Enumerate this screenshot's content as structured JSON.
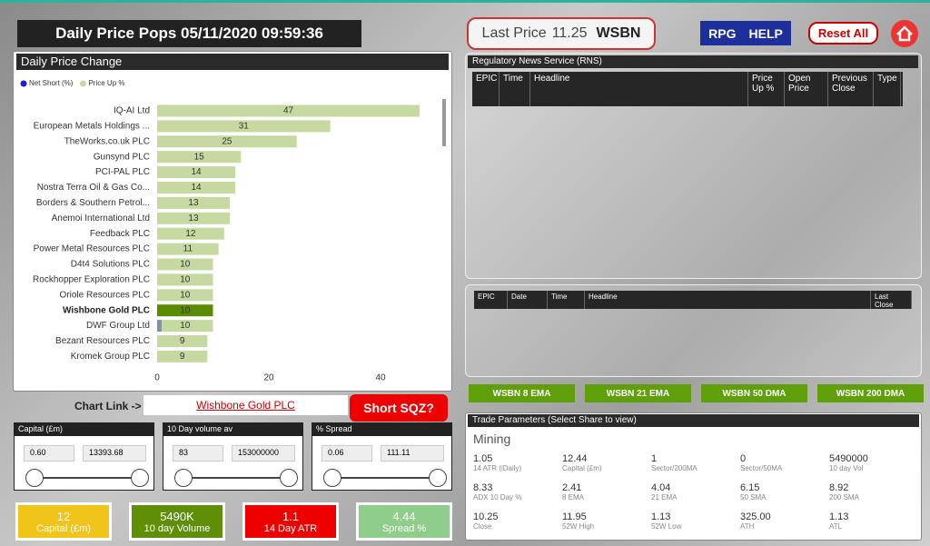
{
  "header": {
    "title": "Daily Price Pops 05/11/2020 09:59:36",
    "last_price_label": "Last Price",
    "last_price": "11.25",
    "epic": "WSBN",
    "buttons": [
      "RPG",
      "HELP",
      "Reset All"
    ]
  },
  "chart_data": {
    "type": "bar",
    "orientation": "horizontal",
    "title": "Daily Price Change",
    "categories": [
      "IQ-AI Ltd",
      "European Metals Holdings ...",
      "TheWorks.co.uk PLC",
      "Gunsynd PLC",
      "PCI-PAL PLC",
      "Nostra Terra Oil & Gas Co...",
      "Borders & Southern Petrol...",
      "Anemoi International Ltd",
      "Feedback PLC",
      "Power Metal Resources PLC",
      "D4t4 Solutions PLC",
      "Rockhopper Exploration PLC",
      "Oriole Resources PLC",
      "Wishbone Gold PLC",
      "DWF Group Ltd",
      "Bezant Resources PLC",
      "Kromek Group PLC"
    ],
    "series": [
      {
        "name": "Net Short (%)",
        "color": "#1f1fd0",
        "values": [
          null,
          null,
          null,
          null,
          null,
          null,
          null,
          null,
          null,
          null,
          null,
          null,
          null,
          null,
          0.8,
          null,
          null
        ]
      },
      {
        "name": "Price Up %",
        "color": "#c6d9a1",
        "colors": [
          "#c6d9a1",
          "#c6d9a1",
          "#c6d9a1",
          "#c6d9a1",
          "#c6d9a1",
          "#c6d9a1",
          "#c6d9a1",
          "#c6d9a1",
          "#c6d9a1",
          "#c6d9a1",
          "#c6d9a1",
          "#c6d9a1",
          "#c6d9a1",
          "#5b8c00",
          "#c6d9a1",
          "#c6d9a1",
          "#c6d9a1"
        ],
        "values": [
          47,
          31,
          25,
          15,
          14,
          14,
          13,
          13,
          12,
          11,
          10,
          10,
          10,
          10,
          10,
          9,
          9
        ]
      }
    ],
    "xlim": [
      0,
      50
    ],
    "xticks": [
      0,
      20,
      40
    ],
    "grid": false
  },
  "chart_link": {
    "label": "Chart Link ->",
    "link": "Wishbone Gold PLC",
    "button": "Short SQZ?"
  },
  "slicers": [
    {
      "title": "Capital (£m)",
      "min": "0.60",
      "max": "13393.68"
    },
    {
      "title": "10  Day volume av",
      "min": "83",
      "max": "153000000"
    },
    {
      "title": "% Spread",
      "min": "0.06",
      "max": "111.11"
    }
  ],
  "cards": [
    {
      "value": "12",
      "label": "Capital (£m)"
    },
    {
      "value": "5490K",
      "label": "10 day Volume"
    },
    {
      "value": "1.1",
      "label": "14 Day ATR"
    },
    {
      "value": "4.44",
      "label": "Spread %"
    }
  ],
  "rns": {
    "title": "Regulatory News Service (RNS)",
    "headers": [
      "EPIC",
      "Time",
      "Headline",
      "Price Up %",
      "Open Price",
      "Previous Close",
      "Type"
    ]
  },
  "news": {
    "headers": [
      "EPIC",
      "Date",
      "Time",
      "Headline",
      "Last Close"
    ]
  },
  "ma_buttons": [
    "WSBN 8 EMA",
    "WSBN 21 EMA",
    "WSBN 50 DMA",
    "WSBN 200 DMA"
  ],
  "trade": {
    "title": "Trade Parameters (Select Share to view)",
    "sector": "Mining",
    "rows": [
      [
        {
          "value": "1.05",
          "label": "14 ATR (iDaily)"
        },
        {
          "value": "12.44",
          "label": "Capital (£m)"
        },
        {
          "value": "1",
          "label": "Sector/200MA"
        },
        {
          "value": "0",
          "label": "Sector/50MA"
        },
        {
          "value": "5490000",
          "label": "10 day Vol"
        }
      ],
      [
        {
          "value": "8.33",
          "label": "ADX 10 Day %"
        },
        {
          "value": "2.41",
          "label": "8 EMA"
        },
        {
          "value": "4.04",
          "label": "21 EMA"
        },
        {
          "value": "6.15",
          "label": "50 SMA"
        },
        {
          "value": "8.92",
          "label": "200 SMA"
        }
      ],
      [
        {
          "value": "10.25",
          "label": "Close"
        },
        {
          "value": "11.95",
          "label": "52W High"
        },
        {
          "value": "1.13",
          "label": "52W Low"
        },
        {
          "value": "325.00",
          "label": "ATH"
        },
        {
          "value": "1.13",
          "label": "ATL"
        }
      ]
    ]
  }
}
